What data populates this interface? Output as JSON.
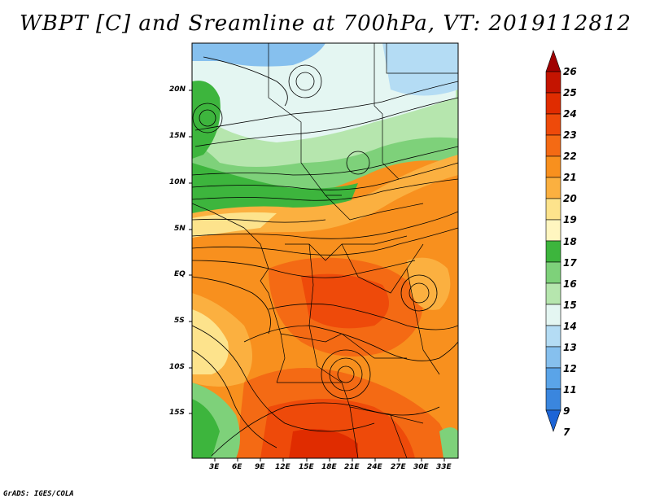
{
  "title": "WBPT [C] and Sreamline at 700hPa, VT: 2019112812",
  "footer": "GrADS: IGES/COLA",
  "map": {
    "lat_labels": [
      "20N",
      "15N",
      "10N",
      "5N",
      "EQ",
      "5S",
      "10S",
      "15S"
    ],
    "lon_labels": [
      "3E",
      "6E",
      "9E",
      "12E",
      "15E",
      "18E",
      "21E",
      "24E",
      "27E",
      "30E",
      "33E"
    ]
  },
  "colorbar": {
    "levels": [
      "26",
      "25",
      "24",
      "23",
      "22",
      "21",
      "20",
      "19",
      "18",
      "17",
      "16",
      "15",
      "14",
      "13",
      "12",
      "11",
      "9",
      "7"
    ],
    "colors": [
      "#a00000",
      "#c41400",
      "#e02c00",
      "#ee4a0a",
      "#f46a14",
      "#f8901e",
      "#fbb040",
      "#fde38c",
      "#fff6c0",
      "#3db53d",
      "#7ed17a",
      "#b6e6ae",
      "#e4f6f2",
      "#b4dcf4",
      "#86c0ee",
      "#5aa4e8",
      "#3a86de",
      "#1c64d6"
    ]
  }
}
